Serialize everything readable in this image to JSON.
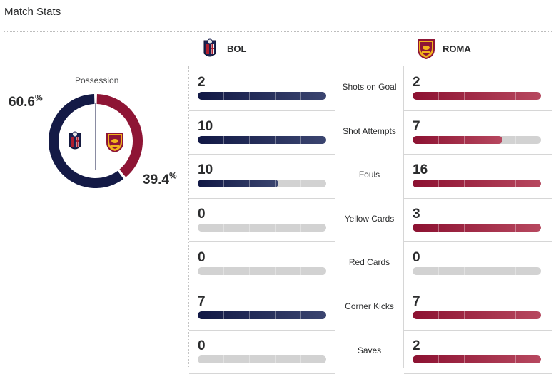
{
  "header": {
    "title": "Match Stats"
  },
  "teams": {
    "home": {
      "abbr": "BOL",
      "color": "#141a46",
      "logo": "bologna-crest-icon"
    },
    "away": {
      "abbr": "ROMA",
      "color": "#8e1535",
      "logo": "roma-crest-icon"
    }
  },
  "possession": {
    "label": "Possession",
    "home_pct": "60.6",
    "away_pct": "39.4",
    "pct_sign": "%",
    "home_value": 60.6,
    "away_value": 39.4
  },
  "stats": [
    {
      "label": "Shots on Goal",
      "home": "2",
      "away": "2",
      "home_fill": 1.0,
      "away_fill": 1.0
    },
    {
      "label": "Shot Attempts",
      "home": "10",
      "away": "7",
      "home_fill": 1.0,
      "away_fill": 0.7
    },
    {
      "label": "Fouls",
      "home": "10",
      "away": "16",
      "home_fill": 0.625,
      "away_fill": 1.0
    },
    {
      "label": "Yellow Cards",
      "home": "0",
      "away": "3",
      "home_fill": 0.0,
      "away_fill": 1.0
    },
    {
      "label": "Red Cards",
      "home": "0",
      "away": "0",
      "home_fill": 0.0,
      "away_fill": 0.0
    },
    {
      "label": "Corner Kicks",
      "home": "7",
      "away": "7",
      "home_fill": 1.0,
      "away_fill": 1.0
    },
    {
      "label": "Saves",
      "home": "0",
      "away": "2",
      "home_fill": 0.0,
      "away_fill": 1.0
    }
  ]
}
